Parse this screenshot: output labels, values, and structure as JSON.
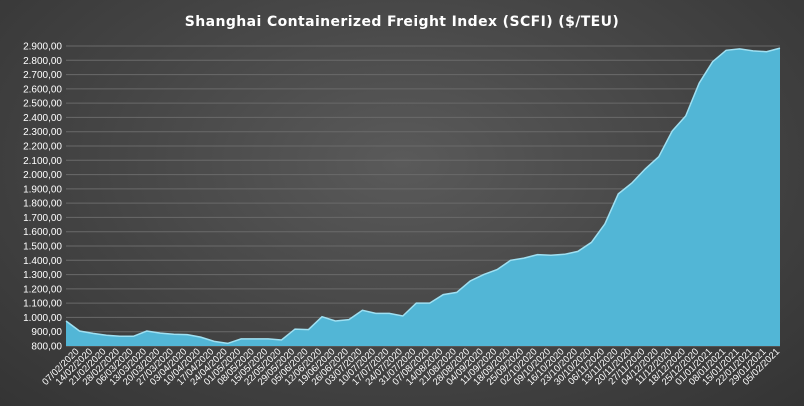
{
  "chart_data": {
    "type": "area",
    "title": "Shanghai Containerized Freight Index  (SCFI) ($/TEU)",
    "xlabel": "",
    "ylabel": "",
    "ylim": [
      800,
      2900
    ],
    "y_ticks": [
      "800,00",
      "900,00",
      "1.000,00",
      "1.100,00",
      "1.200,00",
      "1.300,00",
      "1.400,00",
      "1.500,00",
      "1.600,00",
      "1.700,00",
      "1.800,00",
      "1.900,00",
      "2.000,00",
      "2.100,00",
      "2.200,00",
      "2.300,00",
      "2.400,00",
      "2.500,00",
      "2.600,00",
      "2.700,00",
      "2.800,00",
      "2.900,00"
    ],
    "y_tick_values": [
      800,
      900,
      1000,
      1100,
      1200,
      1300,
      1400,
      1500,
      1600,
      1700,
      1800,
      1900,
      2000,
      2100,
      2200,
      2300,
      2400,
      2500,
      2600,
      2700,
      2800,
      2900
    ],
    "grid": true,
    "legend": "none",
    "fill_color": "#52b6d6",
    "edge_color": "#9fe0f2",
    "x_tick_labels": [
      "07/02/2020",
      "14/02/2020",
      "21/02/2020",
      "28/02/2020",
      "06/03/2020",
      "13/03/2020",
      "20/03/2020",
      "27/03/2020",
      "03/04/2020",
      "10/04/2020",
      "17/04/2020",
      "24/04/2020",
      "01/05/2020",
      "08/05/2020",
      "15/05/2020",
      "22/05/2020",
      "29/05/2020",
      "05/06/2020",
      "12/06/2020",
      "19/06/2020",
      "26/06/2020",
      "03/07/2020",
      "10/07/2020",
      "17/07/2020",
      "24/07/2020",
      "31/07/2020",
      "07/08/2020",
      "14/08/2020",
      "21/08/2020",
      "28/08/2020",
      "04/09/2020",
      "11/09/2020",
      "18/09/2020",
      "25/09/2020",
      "02/10/2020",
      "09/10/2020",
      "16/10/2020",
      "23/10/2020",
      "30/10/2020",
      "06/11/2020",
      "13/11/2020",
      "20/11/2020",
      "27/11/2020",
      "04/12/2020",
      "11/12/2020",
      "18/12/2020",
      "25/12/2020",
      "01/01/2021",
      "08/01/2021",
      "15/01/2021",
      "22/01/2021",
      "29/01/2021",
      "05/02/2021"
    ],
    "points": [
      {
        "x": "31/01/2020",
        "y": 975
      },
      {
        "x": "07/02/2020",
        "y": 905
      },
      {
        "x": "14/02/2020",
        "y": 888
      },
      {
        "x": "21/02/2020",
        "y": 875
      },
      {
        "x": "28/02/2020",
        "y": 868
      },
      {
        "x": "06/03/2020",
        "y": 868
      },
      {
        "x": "13/03/2020",
        "y": 905
      },
      {
        "x": "20/03/2020",
        "y": 890
      },
      {
        "x": "27/03/2020",
        "y": 882
      },
      {
        "x": "03/04/2020",
        "y": 880
      },
      {
        "x": "10/04/2020",
        "y": 862
      },
      {
        "x": "17/04/2020",
        "y": 832
      },
      {
        "x": "24/04/2020",
        "y": 818
      },
      {
        "x": "01/05/2020",
        "y": 850
      },
      {
        "x": "08/05/2020",
        "y": 850
      },
      {
        "x": "15/05/2020",
        "y": 850
      },
      {
        "x": "22/05/2020",
        "y": 842
      },
      {
        "x": "29/05/2020",
        "y": 918
      },
      {
        "x": "05/06/2020",
        "y": 915
      },
      {
        "x": "12/06/2020",
        "y": 1005
      },
      {
        "x": "19/06/2020",
        "y": 975
      },
      {
        "x": "26/06/2020",
        "y": 985
      },
      {
        "x": "03/07/2020",
        "y": 1050
      },
      {
        "x": "10/07/2020",
        "y": 1028
      },
      {
        "x": "17/07/2020",
        "y": 1028
      },
      {
        "x": "24/07/2020",
        "y": 1010
      },
      {
        "x": "31/07/2020",
        "y": 1100
      },
      {
        "x": "07/08/2020",
        "y": 1100
      },
      {
        "x": "14/08/2020",
        "y": 1160
      },
      {
        "x": "21/08/2020",
        "y": 1175
      },
      {
        "x": "28/08/2020",
        "y": 1255
      },
      {
        "x": "04/09/2020",
        "y": 1300
      },
      {
        "x": "11/09/2020",
        "y": 1335
      },
      {
        "x": "18/09/2020",
        "y": 1400
      },
      {
        "x": "25/09/2020",
        "y": 1415
      },
      {
        "x": "02/10/2020",
        "y": 1440
      },
      {
        "x": "09/10/2020",
        "y": 1435
      },
      {
        "x": "16/10/2020",
        "y": 1442
      },
      {
        "x": "23/10/2020",
        "y": 1462
      },
      {
        "x": "30/10/2020",
        "y": 1525
      },
      {
        "x": "06/11/2020",
        "y": 1655
      },
      {
        "x": "13/11/2020",
        "y": 1865
      },
      {
        "x": "20/11/2020",
        "y": 1940
      },
      {
        "x": "27/11/2020",
        "y": 2040
      },
      {
        "x": "04/12/2020",
        "y": 2125
      },
      {
        "x": "11/12/2020",
        "y": 2305
      },
      {
        "x": "18/12/2020",
        "y": 2410
      },
      {
        "x": "25/12/2020",
        "y": 2640
      },
      {
        "x": "01/01/2021",
        "y": 2790
      },
      {
        "x": "08/01/2021",
        "y": 2870
      },
      {
        "x": "15/01/2021",
        "y": 2880
      },
      {
        "x": "22/01/2021",
        "y": 2866
      },
      {
        "x": "29/01/2021",
        "y": 2860
      },
      {
        "x": "05/02/2021",
        "y": 2885
      }
    ]
  }
}
